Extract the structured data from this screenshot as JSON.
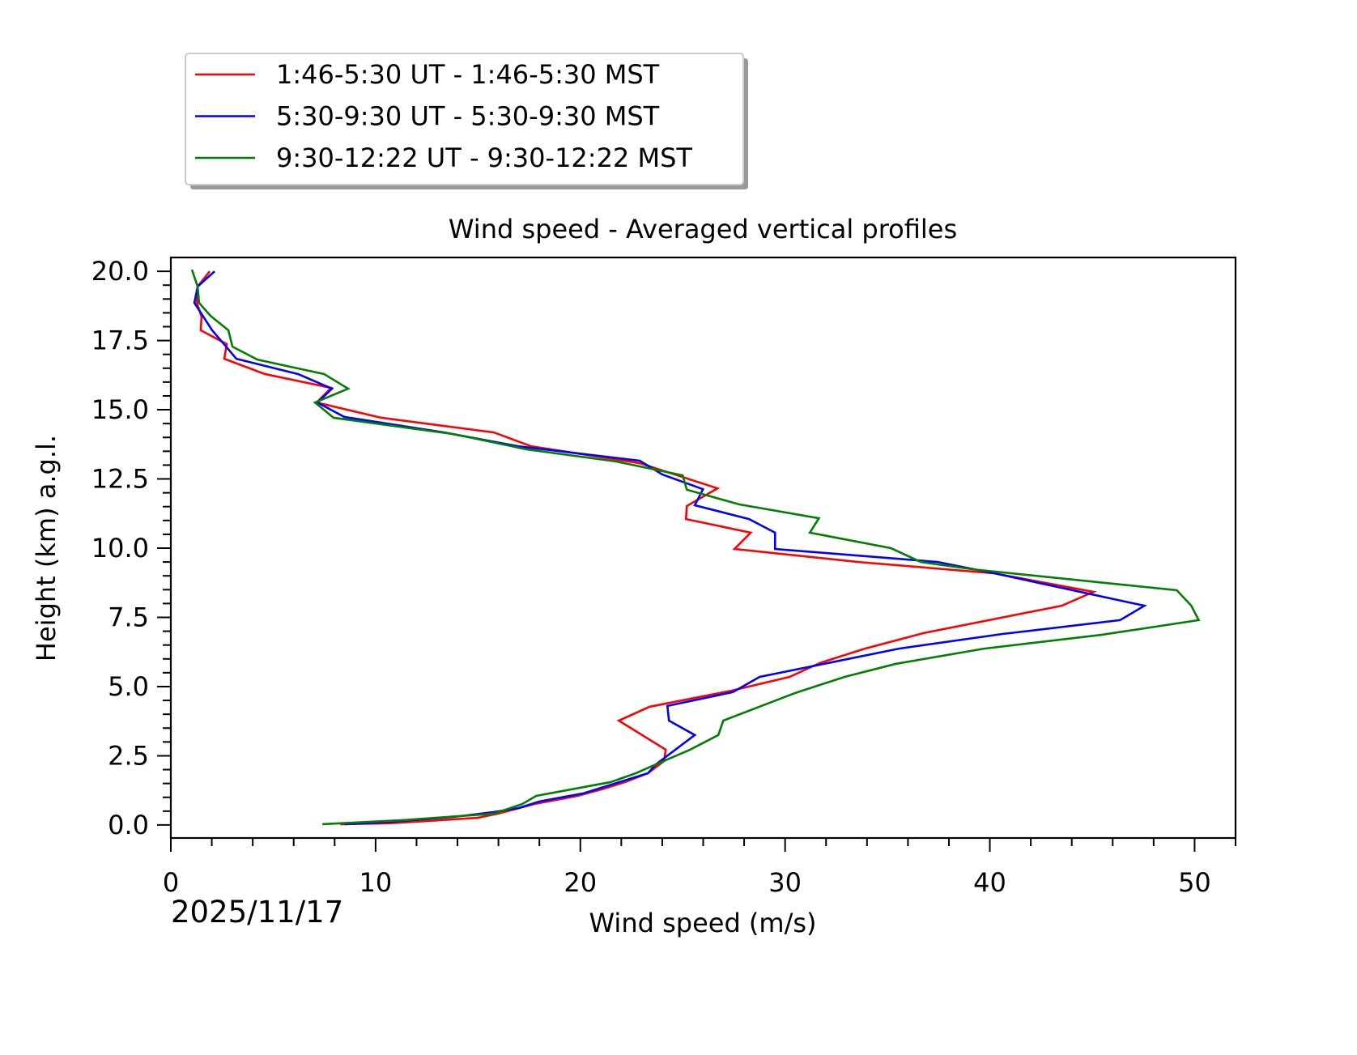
{
  "chart_data": {
    "type": "line",
    "title": "Wind speed - Averaged vertical profiles",
    "xlabel": "Wind speed (m/s)",
    "ylabel": "Height (km) a.g.l.",
    "date_label": "2025/11/17",
    "xlim": [
      0,
      52
    ],
    "ylim": [
      -0.47,
      20.5
    ],
    "xticks": [
      0,
      10,
      20,
      30,
      40,
      50
    ],
    "yticks": [
      0.0,
      2.5,
      5.0,
      7.5,
      10.0,
      12.5,
      15.0,
      17.5,
      20.0
    ],
    "ytick_labels": [
      "0.0",
      "2.5",
      "5.0",
      "7.5",
      "10.0",
      "12.5",
      "15.0",
      "17.5",
      "20.0"
    ],
    "grid": false,
    "legend_placement": "top-left, above plot",
    "series": [
      {
        "name": "1:46-5:30 UT - 1:46-5:30 MST",
        "color": "#ff0000",
        "points": [
          [
            1.9,
            20.0
          ],
          [
            1.31,
            19.45
          ],
          [
            1.27,
            18.86
          ],
          [
            1.5,
            18.36
          ],
          [
            1.46,
            17.87
          ],
          [
            2.73,
            17.37
          ],
          [
            2.61,
            16.84
          ],
          [
            4.59,
            16.29
          ],
          [
            7.83,
            15.79
          ],
          [
            7.12,
            15.26
          ],
          [
            10.28,
            14.71
          ],
          [
            15.78,
            14.18
          ],
          [
            17.6,
            13.68
          ],
          [
            22.9,
            13.07
          ],
          [
            26.7,
            12.16
          ],
          [
            25.55,
            11.67
          ],
          [
            25.2,
            11.52
          ],
          [
            25.16,
            11.05
          ],
          [
            28.32,
            10.56
          ],
          [
            27.53,
            9.97
          ],
          [
            33.58,
            9.5
          ],
          [
            40.23,
            9.09
          ],
          [
            45.06,
            8.42
          ],
          [
            43.51,
            7.92
          ],
          [
            36.75,
            6.93
          ],
          [
            33.9,
            6.37
          ],
          [
            31.69,
            5.85
          ],
          [
            30.22,
            5.35
          ],
          [
            27.37,
            4.85
          ],
          [
            23.38,
            4.27
          ],
          [
            21.88,
            3.77
          ],
          [
            24.17,
            2.72
          ],
          [
            24.09,
            2.31
          ],
          [
            23.3,
            1.87
          ],
          [
            22.19,
            1.55
          ],
          [
            21.04,
            1.29
          ],
          [
            19.86,
            1.05
          ],
          [
            17.76,
            0.76
          ],
          [
            15.98,
            0.41
          ],
          [
            14.99,
            0.26
          ],
          [
            10.64,
            0.06
          ],
          [
            8.27,
            0.03
          ]
        ]
      },
      {
        "name": "5:30-9:30 UT - 5:30-9:30 MST",
        "color": "#0000ff",
        "points": [
          [
            2.14,
            20.0
          ],
          [
            1.31,
            19.45
          ],
          [
            1.15,
            18.86
          ],
          [
            2.02,
            17.87
          ],
          [
            3.2,
            16.84
          ],
          [
            6.21,
            16.29
          ],
          [
            7.87,
            15.76
          ],
          [
            7.16,
            15.26
          ],
          [
            8.47,
            14.74
          ],
          [
            13.33,
            14.18
          ],
          [
            16.97,
            13.68
          ],
          [
            22.9,
            13.16
          ],
          [
            24.01,
            12.66
          ],
          [
            25.99,
            12.13
          ],
          [
            25.59,
            11.55
          ],
          [
            28.24,
            11.05
          ],
          [
            29.51,
            10.56
          ],
          [
            29.51,
            9.97
          ],
          [
            37.46,
            9.5
          ],
          [
            40.23,
            9.09
          ],
          [
            47.55,
            7.92
          ],
          [
            46.36,
            7.4
          ],
          [
            40.62,
            6.9
          ],
          [
            35.56,
            6.37
          ],
          [
            28.76,
            5.35
          ],
          [
            27.45,
            4.8
          ],
          [
            24.25,
            4.3
          ],
          [
            24.33,
            3.77
          ],
          [
            25.59,
            3.25
          ],
          [
            23.69,
            2.19
          ],
          [
            23.3,
            1.87
          ],
          [
            20.13,
            1.14
          ],
          [
            18.0,
            0.85
          ],
          [
            16.97,
            0.61
          ],
          [
            15.78,
            0.47
          ],
          [
            13.81,
            0.29
          ],
          [
            10.25,
            0.09
          ],
          [
            8.47,
            0.03
          ]
        ]
      },
      {
        "name": "9:30-12:22 UT - 9:30-12:22 MST",
        "color": "#008000",
        "points": [
          [
            1.03,
            20.06
          ],
          [
            1.31,
            19.45
          ],
          [
            1.38,
            18.86
          ],
          [
            1.94,
            18.39
          ],
          [
            2.81,
            17.87
          ],
          [
            3.01,
            17.28
          ],
          [
            4.23,
            16.81
          ],
          [
            7.48,
            16.29
          ],
          [
            8.66,
            15.76
          ],
          [
            7.04,
            15.26
          ],
          [
            7.95,
            14.71
          ],
          [
            13.81,
            14.12
          ],
          [
            17.37,
            13.57
          ],
          [
            21.76,
            13.13
          ],
          [
            25.0,
            12.63
          ],
          [
            25.2,
            12.11
          ],
          [
            27.77,
            11.58
          ],
          [
            31.65,
            11.08
          ],
          [
            31.21,
            10.56
          ],
          [
            35.17,
            10.0
          ],
          [
            36.63,
            9.5
          ],
          [
            39.12,
            9.24
          ],
          [
            49.13,
            8.48
          ],
          [
            49.84,
            7.92
          ],
          [
            50.2,
            7.4
          ],
          [
            45.45,
            6.87
          ],
          [
            39.72,
            6.37
          ],
          [
            35.4,
            5.82
          ],
          [
            32.91,
            5.35
          ],
          [
            30.5,
            4.77
          ],
          [
            26.98,
            3.77
          ],
          [
            26.74,
            3.25
          ],
          [
            25.36,
            2.72
          ],
          [
            23.69,
            2.19
          ],
          [
            22.71,
            1.87
          ],
          [
            21.48,
            1.55
          ],
          [
            17.84,
            1.05
          ],
          [
            17.17,
            0.76
          ],
          [
            15.78,
            0.41
          ],
          [
            11.43,
            0.18
          ],
          [
            7.4,
            0.03
          ]
        ]
      }
    ]
  }
}
